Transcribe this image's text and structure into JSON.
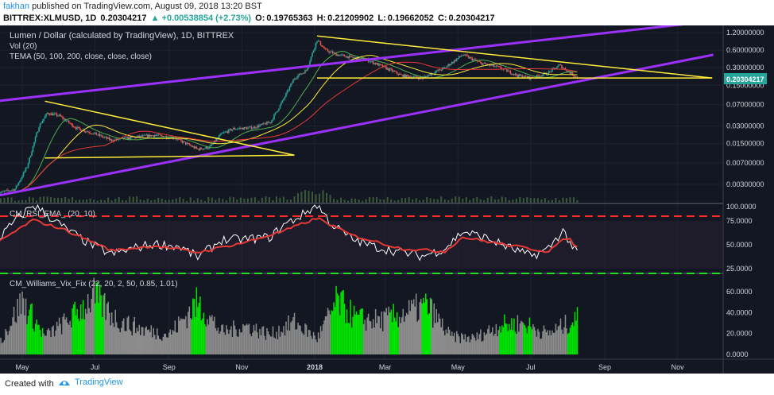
{
  "header": {
    "author": "fakhan",
    "published": "published on TradingView.com, August 09, 2018 13:20 BST",
    "symbol": "BITTREX:XLMUSD, 1D",
    "price": "0.20304217",
    "change": "▲ +0.00538854 (+2.73%)",
    "o_label": "O:",
    "o_value": "0.19765363",
    "h_label": "H:",
    "h_value": "0.21209902",
    "l_label": "L:",
    "l_value": "0.19662052",
    "c_label": "C:",
    "c_value": "0.20304217"
  },
  "footer": {
    "created": "Created with",
    "brand": "TradingView"
  },
  "colors": {
    "background": "#131722",
    "up": "#26a69a",
    "down": "#ef5350",
    "channel": "#9b30ff",
    "triangle": "#ffeb3b",
    "rsi": "#ffffff",
    "ema": "#e53935",
    "vix_gray": "#8c8c8c",
    "vix_green": "#00e600"
  },
  "chart_data": [
    {
      "type": "candlestick",
      "title": "Lumen / Dollar (calculated by TradingView), 1D, BITTREX",
      "legend": [
        "Vol (20)",
        "TEMA (50, 100, 200, close, close, close)"
      ],
      "scale": "log",
      "x_ticks": [
        "May",
        "Jul",
        "Sep",
        "Nov",
        "2018",
        "Mar",
        "May",
        "Jul",
        "Sep",
        "Nov"
      ],
      "y_ticks": [
        "1.20000000",
        "0.60000000",
        "0.30000000",
        "0.15000000",
        "0.07000000",
        "0.03000000",
        "0.01500000",
        "0.00700000",
        "0.00300000"
      ],
      "last_price_label": "0.20304217",
      "price_path": [
        [
          "2017-04-10",
          0.0021
        ],
        [
          "2017-04-25",
          0.0025
        ],
        [
          "2017-05-05",
          0.006
        ],
        [
          "2017-05-15",
          0.03
        ],
        [
          "2017-05-22",
          0.05
        ],
        [
          "2017-06-01",
          0.045
        ],
        [
          "2017-06-15",
          0.028
        ],
        [
          "2017-07-01",
          0.022
        ],
        [
          "2017-07-15",
          0.017
        ],
        [
          "2017-08-01",
          0.019
        ],
        [
          "2017-08-20",
          0.021
        ],
        [
          "2017-09-05",
          0.019
        ],
        [
          "2017-09-25",
          0.012
        ],
        [
          "2017-10-05",
          0.013
        ],
        [
          "2017-10-15",
          0.022
        ],
        [
          "2017-10-25",
          0.027
        ],
        [
          "2017-11-10",
          0.028
        ],
        [
          "2017-11-25",
          0.035
        ],
        [
          "2017-12-05",
          0.08
        ],
        [
          "2017-12-15",
          0.2
        ],
        [
          "2017-12-25",
          0.27
        ],
        [
          "2018-01-03",
          0.9
        ],
        [
          "2018-01-10",
          0.6
        ],
        [
          "2018-01-20",
          0.5
        ],
        [
          "2018-02-01",
          0.45
        ],
        [
          "2018-02-15",
          0.4
        ],
        [
          "2018-03-01",
          0.3
        ],
        [
          "2018-03-15",
          0.22
        ],
        [
          "2018-04-01",
          0.2
        ],
        [
          "2018-04-20",
          0.3
        ],
        [
          "2018-05-05",
          0.5
        ],
        [
          "2018-05-20",
          0.36
        ],
        [
          "2018-06-05",
          0.3
        ],
        [
          "2018-06-20",
          0.22
        ],
        [
          "2018-07-01",
          0.2
        ],
        [
          "2018-07-15",
          0.24
        ],
        [
          "2018-07-25",
          0.33
        ],
        [
          "2018-08-09",
          0.203
        ]
      ],
      "annotations": {
        "channel_upper": [
          [
            "2017-03-28",
            0.075
          ],
          [
            "2018-12-01",
            1.9
          ]
        ],
        "channel_lower": [
          [
            "2017-03-28",
            0.0017
          ],
          [
            "2018-12-01",
            0.5
          ]
        ],
        "triangle_2017_upper": [
          [
            "2017-05-20",
            0.08
          ],
          [
            "2017-12-15",
            0.0095
          ]
        ],
        "triangle_2017_lower": [
          [
            "2017-05-20",
            0.0085
          ],
          [
            "2017-12-15",
            0.0095
          ]
        ],
        "triangle_2018_upper": [
          [
            "2018-01-03",
            1.05
          ],
          [
            "2018-11-30",
            0.2
          ]
        ],
        "triangle_2018_lower": [
          [
            "2018-01-03",
            0.2
          ],
          [
            "2018-11-30",
            0.2
          ]
        ]
      }
    },
    {
      "type": "line",
      "title": "CM_RSI_EMA_ (20, 10)",
      "y_ticks": [
        "100.0000",
        "75.0000",
        "50.0000",
        "25.0000"
      ],
      "ylim": [
        20,
        100
      ],
      "levels": [
        80,
        20
      ],
      "series": [
        {
          "name": "RSI",
          "values": [
            [
              "2017-04-10",
              55
            ],
            [
              "2017-04-25",
              75
            ],
            [
              "2017-05-10",
              92
            ],
            [
              "2017-05-20",
              83
            ],
            [
              "2017-06-05",
              68
            ],
            [
              "2017-06-25",
              52
            ],
            [
              "2017-07-15",
              40
            ],
            [
              "2017-08-01",
              46
            ],
            [
              "2017-08-20",
              51
            ],
            [
              "2017-09-10",
              48
            ],
            [
              "2017-09-25",
              37
            ],
            [
              "2017-10-15",
              55
            ],
            [
              "2017-11-05",
              56
            ],
            [
              "2017-11-25",
              58
            ],
            [
              "2017-12-05",
              70
            ],
            [
              "2017-12-20",
              80
            ],
            [
              "2018-01-03",
              92
            ],
            [
              "2018-01-15",
              72
            ],
            [
              "2018-02-01",
              56
            ],
            [
              "2018-02-20",
              48
            ],
            [
              "2018-03-15",
              42
            ],
            [
              "2018-04-01",
              38
            ],
            [
              "2018-04-20",
              46
            ],
            [
              "2018-05-05",
              64
            ],
            [
              "2018-05-25",
              57
            ],
            [
              "2018-06-15",
              46
            ],
            [
              "2018-07-01",
              38
            ],
            [
              "2018-07-15",
              45
            ],
            [
              "2018-07-28",
              65
            ],
            [
              "2018-08-09",
              40
            ]
          ]
        },
        {
          "name": "EMA",
          "values": [
            [
              "2017-04-10",
              52
            ],
            [
              "2017-05-10",
              76
            ],
            [
              "2017-06-05",
              66
            ],
            [
              "2017-07-15",
              44
            ],
            [
              "2017-08-20",
              49
            ],
            [
              "2017-09-25",
              42
            ],
            [
              "2017-11-05",
              53
            ],
            [
              "2017-12-05",
              64
            ],
            [
              "2018-01-03",
              78
            ],
            [
              "2018-02-01",
              60
            ],
            [
              "2018-03-15",
              46
            ],
            [
              "2018-04-20",
              43
            ],
            [
              "2018-05-05",
              58
            ],
            [
              "2018-06-15",
              49
            ],
            [
              "2018-07-15",
              43
            ],
            [
              "2018-08-01",
              58
            ],
            [
              "2018-08-09",
              47
            ]
          ]
        }
      ]
    },
    {
      "type": "bar",
      "title": "CM_Williams_Vix_Fix (22, 20, 2, 50, 0.85, 1.01)",
      "y_ticks": [
        "60.0000",
        "40.0000",
        "20.0000",
        "0.0000"
      ],
      "ylim": [
        0,
        70
      ],
      "profile": [
        [
          "2017-04-10",
          8
        ],
        [
          "2017-05-01",
          60
        ],
        [
          "2017-05-20",
          20
        ],
        [
          "2017-06-10",
          40
        ],
        [
          "2017-06-30",
          65
        ],
        [
          "2017-07-20",
          38
        ],
        [
          "2017-08-10",
          28
        ],
        [
          "2017-09-01",
          22
        ],
        [
          "2017-09-25",
          58
        ],
        [
          "2017-10-15",
          25
        ],
        [
          "2017-11-05",
          32
        ],
        [
          "2017-11-25",
          22
        ],
        [
          "2017-12-15",
          36
        ],
        [
          "2018-01-03",
          18
        ],
        [
          "2018-01-20",
          60
        ],
        [
          "2018-02-05",
          40
        ],
        [
          "2018-02-25",
          38
        ],
        [
          "2018-03-15",
          45
        ],
        [
          "2018-04-05",
          55
        ],
        [
          "2018-04-25",
          20
        ],
        [
          "2018-05-15",
          18
        ],
        [
          "2018-06-05",
          33
        ],
        [
          "2018-06-25",
          35
        ],
        [
          "2018-07-15",
          23
        ],
        [
          "2018-08-09",
          40
        ]
      ],
      "green_ranges": [
        [
          "2017-05-05",
          "2017-05-18"
        ],
        [
          "2017-06-12",
          "2017-06-22"
        ],
        [
          "2017-07-01",
          "2017-07-08"
        ],
        [
          "2017-09-20",
          "2017-10-01"
        ],
        [
          "2018-01-15",
          "2018-02-10"
        ],
        [
          "2018-03-05",
          "2018-03-12"
        ],
        [
          "2018-04-01",
          "2018-04-08"
        ],
        [
          "2018-06-05",
          "2018-06-18"
        ],
        [
          "2018-06-25",
          "2018-07-02"
        ],
        [
          "2018-08-01",
          "2018-08-09"
        ]
      ]
    }
  ]
}
